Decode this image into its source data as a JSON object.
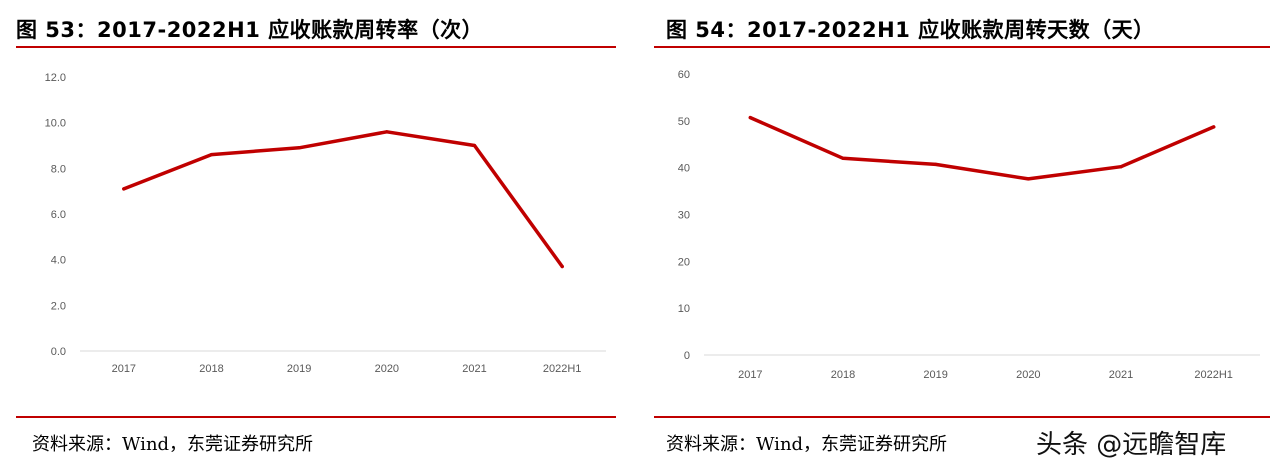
{
  "watermark": "头条 @远瞻智库",
  "chart_data": [
    {
      "type": "line",
      "title": "图 53：2017-2022H1 应收账款周转率（次）",
      "categories": [
        "2017",
        "2018",
        "2019",
        "2020",
        "2021",
        "2022H1"
      ],
      "series": [
        {
          "values": [
            7.1,
            8.6,
            8.9,
            9.6,
            9.0,
            3.7
          ],
          "color": "#c00000"
        }
      ],
      "ylim": [
        0,
        12
      ],
      "yticks": [
        "0.0",
        "2.0",
        "4.0",
        "6.0",
        "8.0",
        "10.0",
        "12.0"
      ],
      "grid": false,
      "source": "资料来源：Wind，东莞证券研究所"
    },
    {
      "type": "line",
      "title": "图 54：2017-2022H1 应收账款周转天数（天）",
      "categories": [
        "2017",
        "2018",
        "2019",
        "2020",
        "2021",
        "2022H1"
      ],
      "series": [
        {
          "values": [
            50.7,
            42.0,
            40.7,
            37.6,
            40.2,
            48.7
          ],
          "color": "#c00000"
        }
      ],
      "ylim": [
        0,
        60
      ],
      "yticks": [
        "0",
        "10",
        "20",
        "30",
        "40",
        "50",
        "60"
      ],
      "grid": false,
      "source": "资料来源：Wind，东莞证券研究所"
    }
  ]
}
